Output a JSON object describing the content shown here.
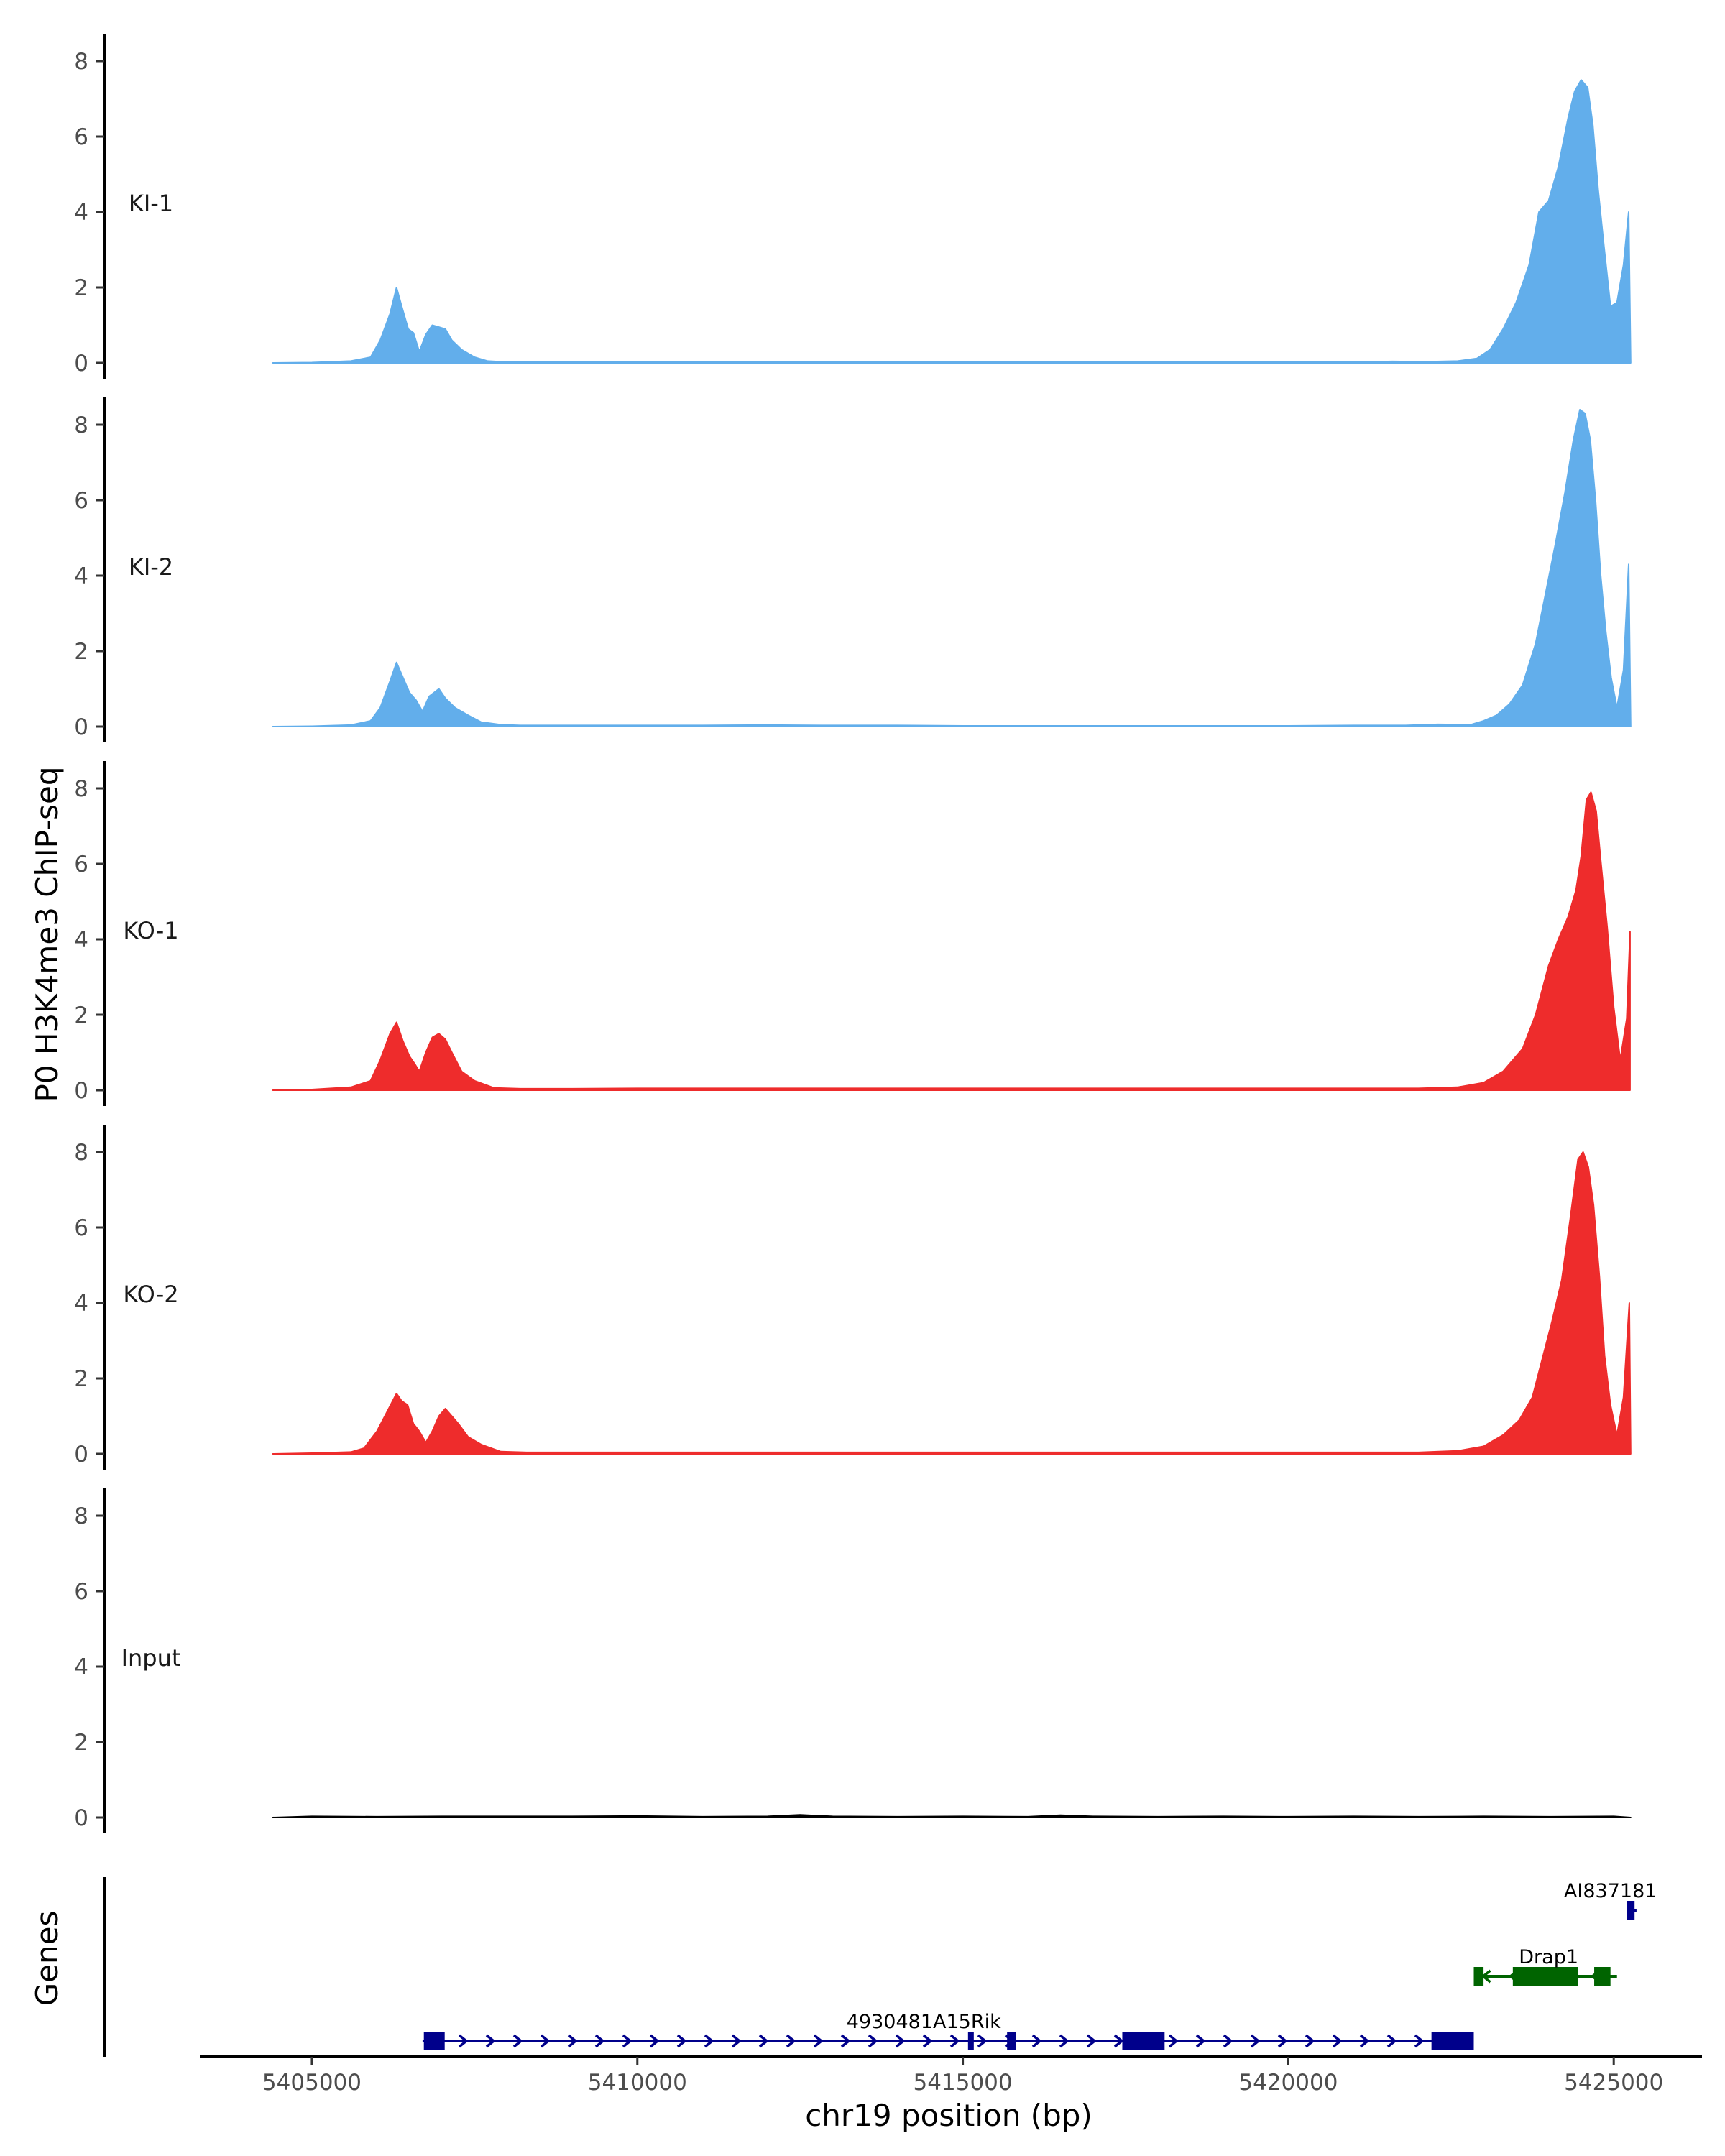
{
  "chart_data": {
    "type": "area",
    "ylabel": "P0 H3K4me3 ChIP-seq",
    "xlabel": "chr19 position (bp)",
    "genes_label": "Genes",
    "ylim": [
      0,
      8.8
    ],
    "yticks": [
      0,
      2,
      4,
      6,
      8
    ],
    "xlim": [
      5403300,
      5426400
    ],
    "xticks": [
      5405000,
      5410000,
      5415000,
      5420000,
      5425000
    ],
    "colors": {
      "KI": "#62aeeb",
      "KO": "#ee2c2c",
      "Input": "#000000",
      "gene_plus": "#00008b",
      "gene_minus": "#006400"
    },
    "series": [
      {
        "name": "KI-1",
        "color": "#62aeeb",
        "x": [
          5404400,
          5405000,
          5405600,
          5405900,
          5406050,
          5406200,
          5406300,
          5406380,
          5406480,
          5406560,
          5406650,
          5406750,
          5406850,
          5406950,
          5407050,
          5407150,
          5407300,
          5407500,
          5407700,
          5407900,
          5408200,
          5408800,
          5409500,
          5410000,
          5411000,
          5412000,
          5413000,
          5414000,
          5415000,
          5416000,
          5417000,
          5418000,
          5419000,
          5420000,
          5421000,
          5421600,
          5422100,
          5422600,
          5422900,
          5423100,
          5423300,
          5423500,
          5423700,
          5423850,
          5424000,
          5424150,
          5424300,
          5424400,
          5424500,
          5424600,
          5424680,
          5424760,
          5424850,
          5424950,
          5425050,
          5425150,
          5425230,
          5425260
        ],
        "y": [
          0,
          0.01,
          0.05,
          0.15,
          0.6,
          1.3,
          2.0,
          1.5,
          0.9,
          0.8,
          0.3,
          0.75,
          1.0,
          0.95,
          0.9,
          0.6,
          0.35,
          0.15,
          0.05,
          0.03,
          0.02,
          0.03,
          0.02,
          0.02,
          0.02,
          0.02,
          0.02,
          0.02,
          0.02,
          0.02,
          0.02,
          0.02,
          0.02,
          0.02,
          0.02,
          0.04,
          0.03,
          0.05,
          0.12,
          0.35,
          0.9,
          1.6,
          2.6,
          4.0,
          4.3,
          5.2,
          6.5,
          7.2,
          7.5,
          7.3,
          6.3,
          4.6,
          3.1,
          1.5,
          1.6,
          2.6,
          4.0,
          0
        ]
      },
      {
        "name": "KI-2",
        "color": "#62aeeb",
        "x": [
          5404400,
          5405000,
          5405600,
          5405900,
          5406050,
          5406200,
          5406300,
          5406400,
          5406500,
          5406600,
          5406700,
          5406800,
          5406950,
          5407050,
          5407200,
          5407400,
          5407600,
          5407900,
          5408200,
          5409000,
          5410000,
          5411000,
          5412000,
          5413000,
          5414000,
          5415000,
          5416000,
          5417000,
          5418000,
          5419000,
          5420000,
          5421000,
          5421800,
          5422300,
          5422800,
          5423000,
          5423200,
          5423400,
          5423600,
          5423800,
          5423950,
          5424100,
          5424250,
          5424380,
          5424480,
          5424560,
          5424640,
          5424720,
          5424800,
          5424880,
          5424960,
          5425050,
          5425150,
          5425230,
          5425260
        ],
        "y": [
          0,
          0.01,
          0.04,
          0.15,
          0.5,
          1.2,
          1.7,
          1.3,
          0.9,
          0.7,
          0.4,
          0.8,
          1.0,
          0.75,
          0.5,
          0.3,
          0.12,
          0.05,
          0.03,
          0.03,
          0.03,
          0.03,
          0.04,
          0.03,
          0.03,
          0.02,
          0.02,
          0.02,
          0.02,
          0.02,
          0.02,
          0.03,
          0.03,
          0.06,
          0.05,
          0.15,
          0.3,
          0.6,
          1.1,
          2.2,
          3.5,
          4.8,
          6.2,
          7.6,
          8.4,
          8.3,
          7.6,
          6.0,
          4.0,
          2.5,
          1.3,
          0.5,
          1.5,
          4.3,
          0
        ]
      },
      {
        "name": "KO-1",
        "color": "#ee2c2c",
        "x": [
          5404400,
          5405000,
          5405600,
          5405900,
          5406050,
          5406200,
          5406300,
          5406400,
          5406500,
          5406580,
          5406650,
          5406750,
          5406850,
          5406950,
          5407050,
          5407150,
          5407300,
          5407500,
          5407800,
          5408200,
          5409000,
          5410000,
          5411000,
          5412000,
          5413000,
          5414000,
          5415000,
          5416000,
          5417000,
          5418000,
          5419000,
          5420000,
          5421000,
          5422000,
          5422600,
          5423000,
          5423300,
          5423600,
          5423800,
          5424000,
          5424150,
          5424300,
          5424420,
          5424500,
          5424580,
          5424650,
          5424730,
          5424800,
          5424900,
          5425000,
          5425100,
          5425200,
          5425250
        ],
        "y": [
          0,
          0.02,
          0.08,
          0.25,
          0.8,
          1.5,
          1.8,
          1.3,
          0.9,
          0.7,
          0.5,
          1.0,
          1.4,
          1.5,
          1.35,
          1.0,
          0.5,
          0.25,
          0.06,
          0.04,
          0.04,
          0.05,
          0.05,
          0.05,
          0.05,
          0.05,
          0.05,
          0.05,
          0.05,
          0.05,
          0.05,
          0.05,
          0.05,
          0.05,
          0.08,
          0.2,
          0.5,
          1.1,
          2.0,
          3.3,
          4.0,
          4.6,
          5.3,
          6.2,
          7.7,
          7.9,
          7.4,
          6.1,
          4.3,
          2.2,
          0.8,
          1.9,
          4.2
        ]
      },
      {
        "name": "KO-2",
        "color": "#ee2c2c",
        "x": [
          5404400,
          5405000,
          5405600,
          5405800,
          5406000,
          5406150,
          5406300,
          5406380,
          5406470,
          5406560,
          5406650,
          5406750,
          5406850,
          5406950,
          5407050,
          5407150,
          5407250,
          5407400,
          5407600,
          5407900,
          5408300,
          5409000,
          5410000,
          5411000,
          5412000,
          5413000,
          5414000,
          5415000,
          5416000,
          5417000,
          5418000,
          5419000,
          5420000,
          5421000,
          5422000,
          5422600,
          5423000,
          5423300,
          5423550,
          5423750,
          5423900,
          5424050,
          5424200,
          5424330,
          5424450,
          5424530,
          5424610,
          5424690,
          5424780,
          5424860,
          5424950,
          5425050,
          5425150,
          5425240,
          5425260
        ],
        "y": [
          0,
          0.02,
          0.05,
          0.15,
          0.6,
          1.1,
          1.6,
          1.4,
          1.3,
          0.8,
          0.6,
          0.3,
          0.6,
          1.0,
          1.2,
          1.0,
          0.8,
          0.45,
          0.25,
          0.06,
          0.04,
          0.04,
          0.04,
          0.04,
          0.04,
          0.04,
          0.04,
          0.04,
          0.04,
          0.04,
          0.04,
          0.04,
          0.04,
          0.04,
          0.04,
          0.08,
          0.2,
          0.5,
          0.9,
          1.5,
          2.5,
          3.5,
          4.6,
          6.2,
          7.8,
          8.0,
          7.6,
          6.6,
          4.7,
          2.6,
          1.3,
          0.5,
          1.5,
          4.0,
          0
        ]
      },
      {
        "name": "Input",
        "color": "#000000",
        "x": [
          5404400,
          5405000,
          5406000,
          5407000,
          5408000,
          5409000,
          5410000,
          5411000,
          5412000,
          5412500,
          5413000,
          5414000,
          5415000,
          5416000,
          5416500,
          5417000,
          5418000,
          5419000,
          5420000,
          5421000,
          5422000,
          5423000,
          5424000,
          5425000,
          5425260
        ],
        "y": [
          0,
          0.03,
          0.02,
          0.03,
          0.03,
          0.03,
          0.04,
          0.02,
          0.03,
          0.07,
          0.03,
          0.02,
          0.03,
          0.02,
          0.06,
          0.03,
          0.02,
          0.03,
          0.02,
          0.03,
          0.02,
          0.03,
          0.02,
          0.03,
          0
        ]
      }
    ],
    "genes": [
      {
        "name": "4930481A15Rik",
        "strand": "+",
        "color": "#00008b",
        "row": 1,
        "start": 5406700,
        "end": 5422850,
        "exons": [
          [
            5406720,
            5407040
          ],
          [
            5415080,
            5415160
          ],
          [
            5415680,
            5415820
          ],
          [
            5417450,
            5418100
          ],
          [
            5422200,
            5422850
          ]
        ],
        "label_x": 5414400
      },
      {
        "name": "Drap1",
        "strand": "-",
        "color": "#006400",
        "row": 2,
        "start": 5422850,
        "end": 5425050,
        "exons": [
          [
            5422850,
            5423000
          ],
          [
            5423450,
            5424450
          ],
          [
            5424700,
            5424950
          ]
        ],
        "label_x": 5424000
      },
      {
        "name": "AI837181",
        "strand": "+",
        "color": "#00008b",
        "row": 3,
        "start": 5425200,
        "end": 5425350,
        "exons": [
          [
            5425200,
            5425320
          ]
        ],
        "label_x": 5424950
      }
    ]
  }
}
